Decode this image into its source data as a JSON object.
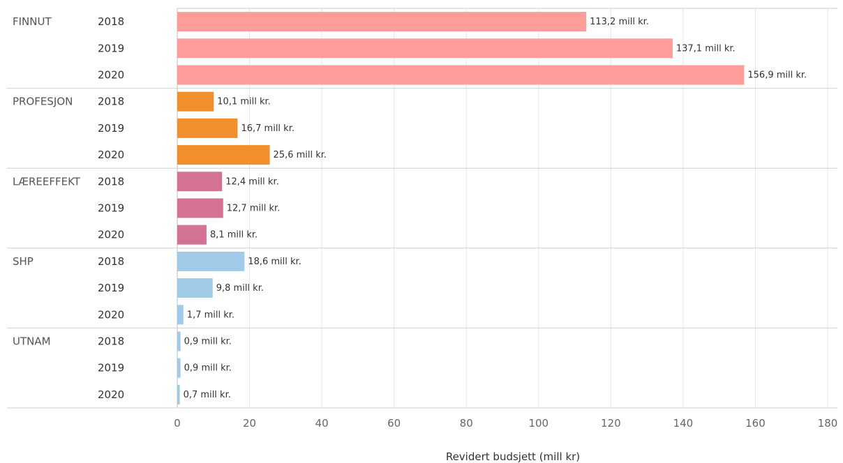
{
  "chart_data": {
    "type": "bar",
    "orientation": "horizontal",
    "title": "",
    "xlabel": "Revidert budsjett (mill kr)",
    "ylabel": "",
    "xlim": [
      0,
      180
    ],
    "x_ticks": [
      0,
      20,
      40,
      60,
      80,
      100,
      120,
      140,
      160,
      180
    ],
    "value_suffix": " mill kr.",
    "grid": "vertical",
    "groups": [
      {
        "name": "FINNUT",
        "color": "#ff9d9a",
        "bars": [
          {
            "year": "2018",
            "value": 113.2,
            "label": "113,2"
          },
          {
            "year": "2019",
            "value": 137.1,
            "label": "137,1"
          },
          {
            "year": "2020",
            "value": 156.9,
            "label": "156,9"
          }
        ]
      },
      {
        "name": "PROFESJON",
        "color": "#f28e2b",
        "bars": [
          {
            "year": "2018",
            "value": 10.1,
            "label": "10,1"
          },
          {
            "year": "2019",
            "value": 16.7,
            "label": "16,7"
          },
          {
            "year": "2020",
            "value": 25.6,
            "label": "25,6"
          }
        ]
      },
      {
        "name": "LÆREEFFEKT",
        "color": "#d37295",
        "bars": [
          {
            "year": "2018",
            "value": 12.4,
            "label": "12,4"
          },
          {
            "year": "2019",
            "value": 12.7,
            "label": "12,7"
          },
          {
            "year": "2020",
            "value": 8.1,
            "label": "8,1"
          }
        ]
      },
      {
        "name": "SHP",
        "color": "#a0cbe8",
        "bars": [
          {
            "year": "2018",
            "value": 18.6,
            "label": "18,6"
          },
          {
            "year": "2019",
            "value": 9.8,
            "label": "9,8"
          },
          {
            "year": "2020",
            "value": 1.7,
            "label": "1,7"
          }
        ]
      },
      {
        "name": "UTNAM",
        "color": "#a0cbe8",
        "bars": [
          {
            "year": "2018",
            "value": 0.9,
            "label": "0,9"
          },
          {
            "year": "2019",
            "value": 0.9,
            "label": "0,9"
          },
          {
            "year": "2020",
            "value": 0.7,
            "label": "0,7"
          }
        ]
      }
    ]
  }
}
